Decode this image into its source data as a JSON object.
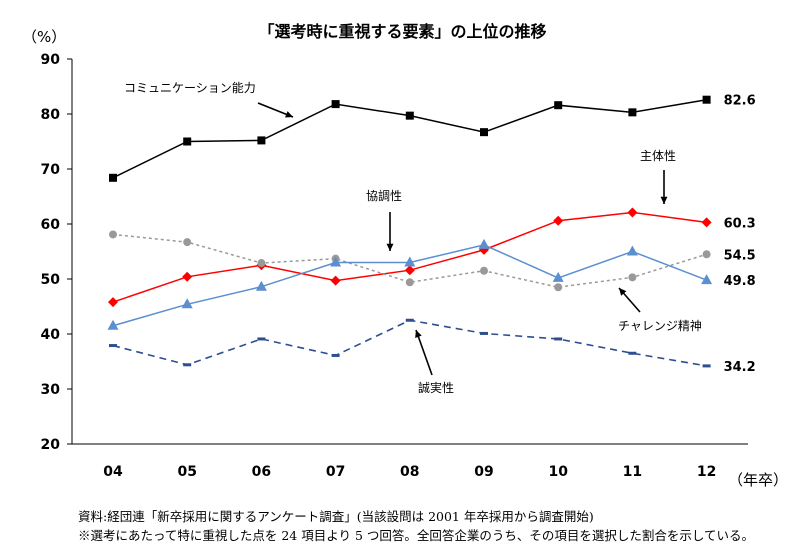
{
  "chart_data": {
    "type": "line",
    "title": "「選考時に重視する要素」の上位の推移",
    "ylabel": "（%）",
    "xlabel": "（年卒）",
    "categories": [
      "04",
      "05",
      "06",
      "07",
      "08",
      "09",
      "10",
      "11",
      "12"
    ],
    "ylim": [
      20,
      90
    ],
    "yticks": [
      20,
      30,
      40,
      50,
      60,
      70,
      80,
      90
    ],
    "series": [
      {
        "name": "コミュニケーション能力",
        "values": [
          68.4,
          75.0,
          75.2,
          81.8,
          79.7,
          76.7,
          81.6,
          80.3,
          82.6
        ],
        "end_label": "82.6",
        "color": "#000000",
        "marker": "square",
        "dash": "solid"
      },
      {
        "name": "主体性",
        "values": [
          45.8,
          50.4,
          52.5,
          49.7,
          51.6,
          55.3,
          60.6,
          62.1,
          60.3
        ],
        "end_label": "60.3",
        "color": "#ff0000",
        "marker": "diamond",
        "dash": "solid"
      },
      {
        "name": "チャレンジ精神",
        "values": [
          58.1,
          56.7,
          52.9,
          53.7,
          49.4,
          51.5,
          48.5,
          50.3,
          54.5
        ],
        "end_label": "54.5",
        "color": "#999999",
        "marker": "circle",
        "dash": "dotted"
      },
      {
        "name": "協調性",
        "values": [
          41.5,
          45.4,
          48.6,
          53.0,
          53.0,
          56.2,
          50.2,
          55.0,
          49.8
        ],
        "end_label": "49.8",
        "color": "#5b8fcf",
        "marker": "triangle",
        "dash": "solid"
      },
      {
        "name": "誠実性",
        "values": [
          37.9,
          34.4,
          39.1,
          36.1,
          42.5,
          40.1,
          39.1,
          36.5,
          34.2
        ],
        "end_label": "34.2",
        "color": "#2e4f8f",
        "marker": "dash",
        "dash": "dashed"
      }
    ],
    "annotations": [
      "コミュニケーション能力",
      "主体性",
      "協調性",
      "チャレンジ精神",
      "誠実性"
    ]
  },
  "notes": {
    "line1": "資料:経団連「新卒採用に関するアンケート調査」(当該設問は 2001 年卒採用から調査開始)",
    "line2": "※選考にあたって特に重視した点を 24 項目より 5 つ回答。全回答企業のうち、その項目を選択した割合を示している。"
  }
}
